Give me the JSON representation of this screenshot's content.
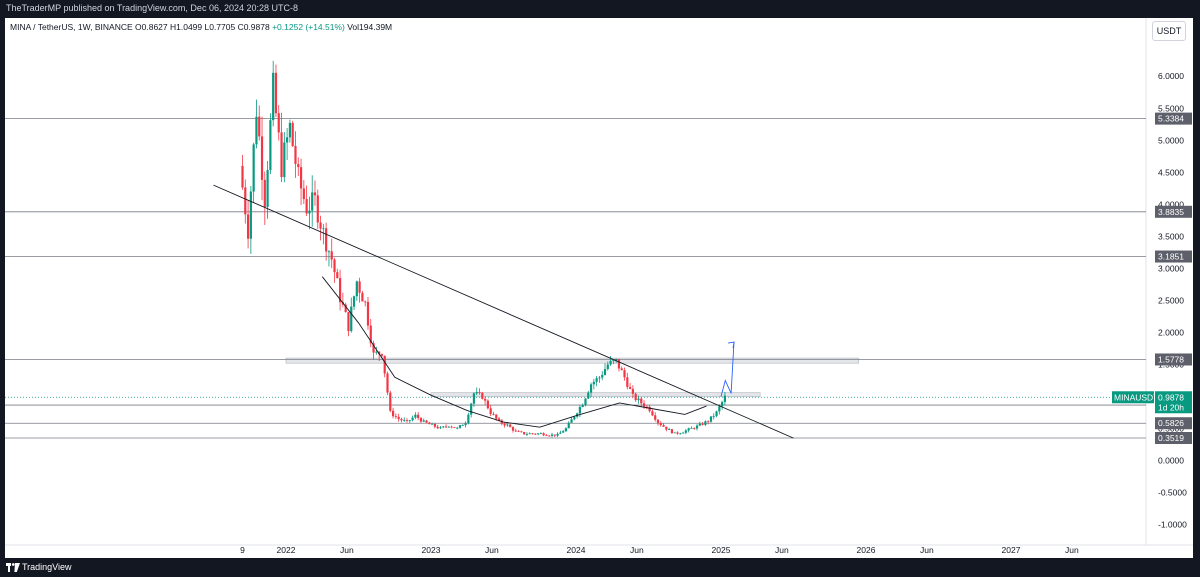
{
  "header": {
    "publisher_line": "TheTraderMP published on TradingView.com, Dec 06, 2024 20:28 UTC-8",
    "symbol_line_prefix": "MINA / TetherUS, 1W, BINANCE  O0.8627  H1.0499  L0.7705  C0.9878 ",
    "symbol_line_change": "+0.1252 (+14.51%)",
    "symbol_line_volume": "  Vol194.39M",
    "currency": "USDT"
  },
  "footer": {
    "brand": "TradingView"
  },
  "colors": {
    "background": "#ffffff",
    "frame": "#131722",
    "up": "#089981",
    "down": "#f23645",
    "level_line": "#787b86",
    "last_price": "#089981",
    "projection": "#2962ff",
    "zone_fill": "#d8dae0"
  },
  "chart_data": {
    "type": "candlestick",
    "symbol": "MINAUSDT",
    "interval": "1W",
    "exchange": "BINANCE",
    "ylim": [
      -1.1,
      6.55
    ],
    "y_ticks": [
      "6.0000",
      "5.5000",
      "5.0000",
      "4.5000",
      "4.0000",
      "3.5000",
      "3.0000",
      "2.5000",
      "2.0000",
      "1.5000",
      "1.0000",
      "0.5000",
      "0.0000",
      "-0.5000",
      "-1.0000"
    ],
    "x_ticks": [
      "9",
      "2022",
      "Jun",
      "2023",
      "Jun",
      "2024",
      "Jun",
      "2025",
      "Jun",
      "2026",
      "Jun",
      "2027",
      "Jun"
    ],
    "horizontal_levels": [
      {
        "label": "5.3384",
        "value": 5.3384
      },
      {
        "label": "3.8835",
        "value": 3.8835
      },
      {
        "label": "3.1851",
        "value": 3.1851
      },
      {
        "label": "1.5778",
        "value": 1.5778
      },
      {
        "label": "0.8663",
        "value": 0.8663
      },
      {
        "label": "0.5826",
        "value": 0.5826
      },
      {
        "label": "0.3519",
        "value": 0.3519
      }
    ],
    "last_price": {
      "symbol_label": "MINAUSDT",
      "value": 0.9878,
      "label": "0.9878",
      "countdown": "1d 20h"
    },
    "open": 0.8627,
    "high": 1.0499,
    "low": 0.7705,
    "close": 0.9878,
    "change": 0.1252,
    "change_pct": 14.51,
    "volume": "194.39M",
    "price_path": [
      4.6,
      3.6,
      5.5,
      4.1,
      5.8,
      4.6,
      5.2,
      4.4,
      3.95,
      4.05,
      3.55,
      3.15,
      2.55,
      2.1,
      2.8,
      2.45,
      1.65,
      1.7,
      0.75,
      0.65,
      0.6,
      0.7,
      0.6,
      0.55,
      0.5,
      0.55,
      0.5,
      0.6,
      1.05,
      1.0,
      0.75,
      0.6,
      0.55,
      0.45,
      0.42,
      0.42,
      0.42,
      0.4,
      0.4,
      0.5,
      0.7,
      0.9,
      1.2,
      1.3,
      1.5,
      1.55,
      1.3,
      1.0,
      0.9,
      0.8,
      0.6,
      0.5,
      0.42,
      0.45,
      0.5,
      0.55,
      0.62,
      0.75,
      0.99
    ],
    "moving_average": [
      [
        2022.25,
        2.87
      ],
      [
        2022.5,
        2.15
      ],
      [
        2022.75,
        1.3
      ],
      [
        2023.0,
        1.02
      ],
      [
        2023.25,
        0.78
      ],
      [
        2023.5,
        0.6
      ],
      [
        2023.75,
        0.52
      ],
      [
        2024.0,
        0.7
      ],
      [
        2024.3,
        0.9
      ],
      [
        2024.5,
        0.82
      ],
      [
        2024.75,
        0.72
      ],
      [
        2024.9,
        0.85
      ]
    ],
    "trendline": [
      [
        2021.5,
        4.3
      ],
      [
        2025.5,
        0.35
      ]
    ],
    "supply_zones": [
      {
        "x0": 2022.0,
        "x1": 2025.95,
        "low": 1.52,
        "high": 1.6
      },
      {
        "x0": 2023.0,
        "x1": 2025.27,
        "low": 1.0,
        "high": 1.06
      }
    ],
    "projection_path": [
      [
        2025.0,
        1.0
      ],
      [
        2025.03,
        1.25
      ],
      [
        2025.07,
        1.05
      ],
      [
        2025.09,
        1.85
      ]
    ]
  }
}
